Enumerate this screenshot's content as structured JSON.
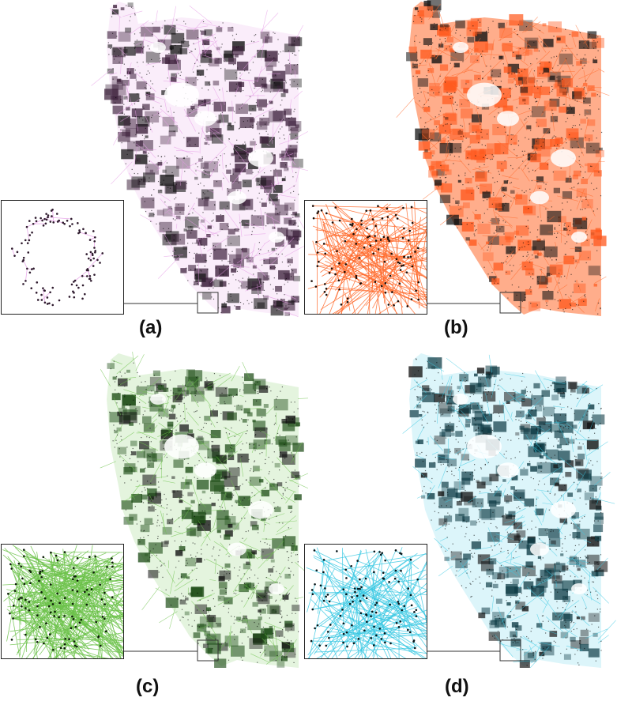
{
  "panels": [
    {
      "id": "a",
      "caption": "(a)",
      "edge_color": "#e59ae6",
      "dot_color": "#2e1a2d",
      "dense_color": "#3b1f3a",
      "style": "purple"
    },
    {
      "id": "b",
      "caption": "(b)",
      "edge_color": "#ff6a2b",
      "dot_color": "#1a0c06",
      "dense_color": "#ff5a1f",
      "style": "orange"
    },
    {
      "id": "c",
      "caption": "(c)",
      "edge_color": "#6cc24a",
      "dot_color": "#0c1a08",
      "dense_color": "#1e4d17",
      "style": "green"
    },
    {
      "id": "d",
      "caption": "(d)",
      "edge_color": "#3cc9e3",
      "dot_color": "#061418",
      "dense_color": "#0d3a44",
      "style": "cyan"
    }
  ]
}
